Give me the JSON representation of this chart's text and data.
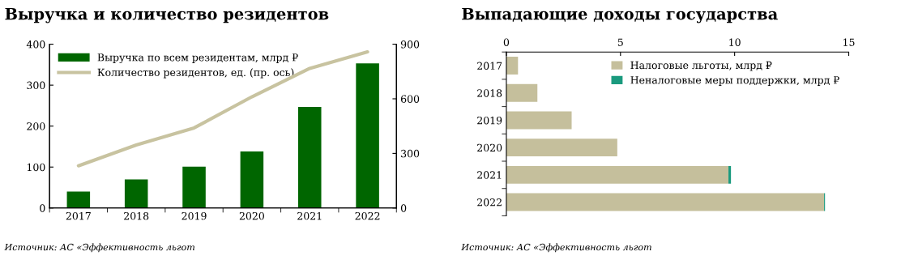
{
  "chart_data": [
    {
      "type": "bar",
      "title": "Выручка и количество резидентов",
      "categories": [
        "2017",
        "2018",
        "2019",
        "2020",
        "2021",
        "2022"
      ],
      "series": [
        {
          "name": "Выручка по всем резидентам, млрд ₽",
          "color": "#006600",
          "values": [
            40,
            70,
            101,
            138,
            247,
            353
          ]
        },
        {
          "name": "Количество резидентов, ед. (пр. ось)",
          "type": "line",
          "axis": "y2",
          "color": "#c8c3a0",
          "values": [
            232,
            346,
            440,
            611,
            767,
            858
          ]
        }
      ],
      "ylim": [
        0,
        400
      ],
      "yticks": [
        0,
        100,
        200,
        300,
        400
      ],
      "y2lim": [
        0,
        900
      ],
      "y2ticks": [
        0,
        300,
        600,
        900
      ],
      "legend": "top left",
      "grid": false,
      "annotations": [
        "Источник: АС «Эффективность льгот"
      ]
    },
    {
      "type": "bar",
      "orientation": "horizontal",
      "stacked": true,
      "title": "Выпадающие доходы государства",
      "categories": [
        "2017",
        "2018",
        "2019",
        "2020",
        "2021",
        "2022"
      ],
      "series": [
        {
          "name": "Налоговые льготы, млрд ₽",
          "color": "#c5bf9c",
          "values": [
            0.51,
            1.36,
            2.86,
            4.86,
            9.73,
            13.92
          ]
        },
        {
          "name": "Неналоговые меры поддержки, млрд ₽",
          "color": "#1a9a7e",
          "values": [
            0,
            0,
            0,
            0,
            0.11,
            0.04
          ]
        }
      ],
      "xlim": [
        0,
        15
      ],
      "xticks": [
        0,
        5,
        10,
        15
      ],
      "legend": "top right",
      "grid": false,
      "annotations": [
        "Источник: АС «Эффективность льгот"
      ]
    }
  ]
}
